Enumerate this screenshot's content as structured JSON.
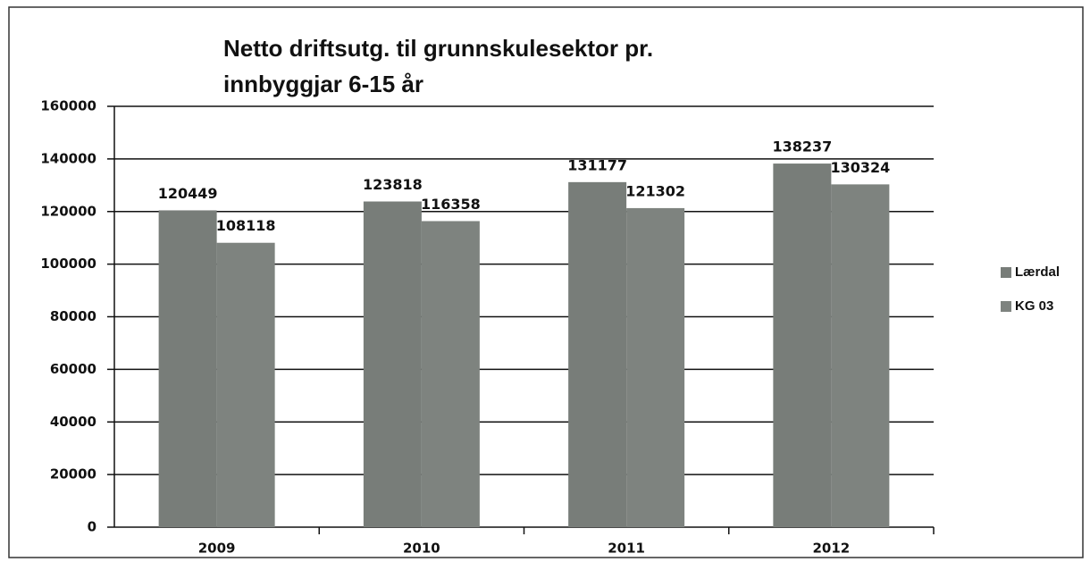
{
  "chart_data": {
    "type": "bar",
    "title": "Netto driftsutg. til grunnskulesektor pr. innbyggjar 6-15 år",
    "categories": [
      "2009",
      "2010",
      "2011",
      "2012"
    ],
    "series": [
      {
        "name": "Lærdal",
        "color": "#787d79",
        "values": [
          120449,
          123818,
          131177,
          138237
        ]
      },
      {
        "name": "KG 03",
        "color": "#7e837f",
        "values": [
          108118,
          116358,
          121302,
          130324
        ]
      }
    ],
    "ylim": [
      0,
      160000
    ],
    "yticks": [
      0,
      20000,
      40000,
      60000,
      80000,
      100000,
      120000,
      140000,
      160000
    ],
    "grid": true,
    "legend": "right"
  }
}
